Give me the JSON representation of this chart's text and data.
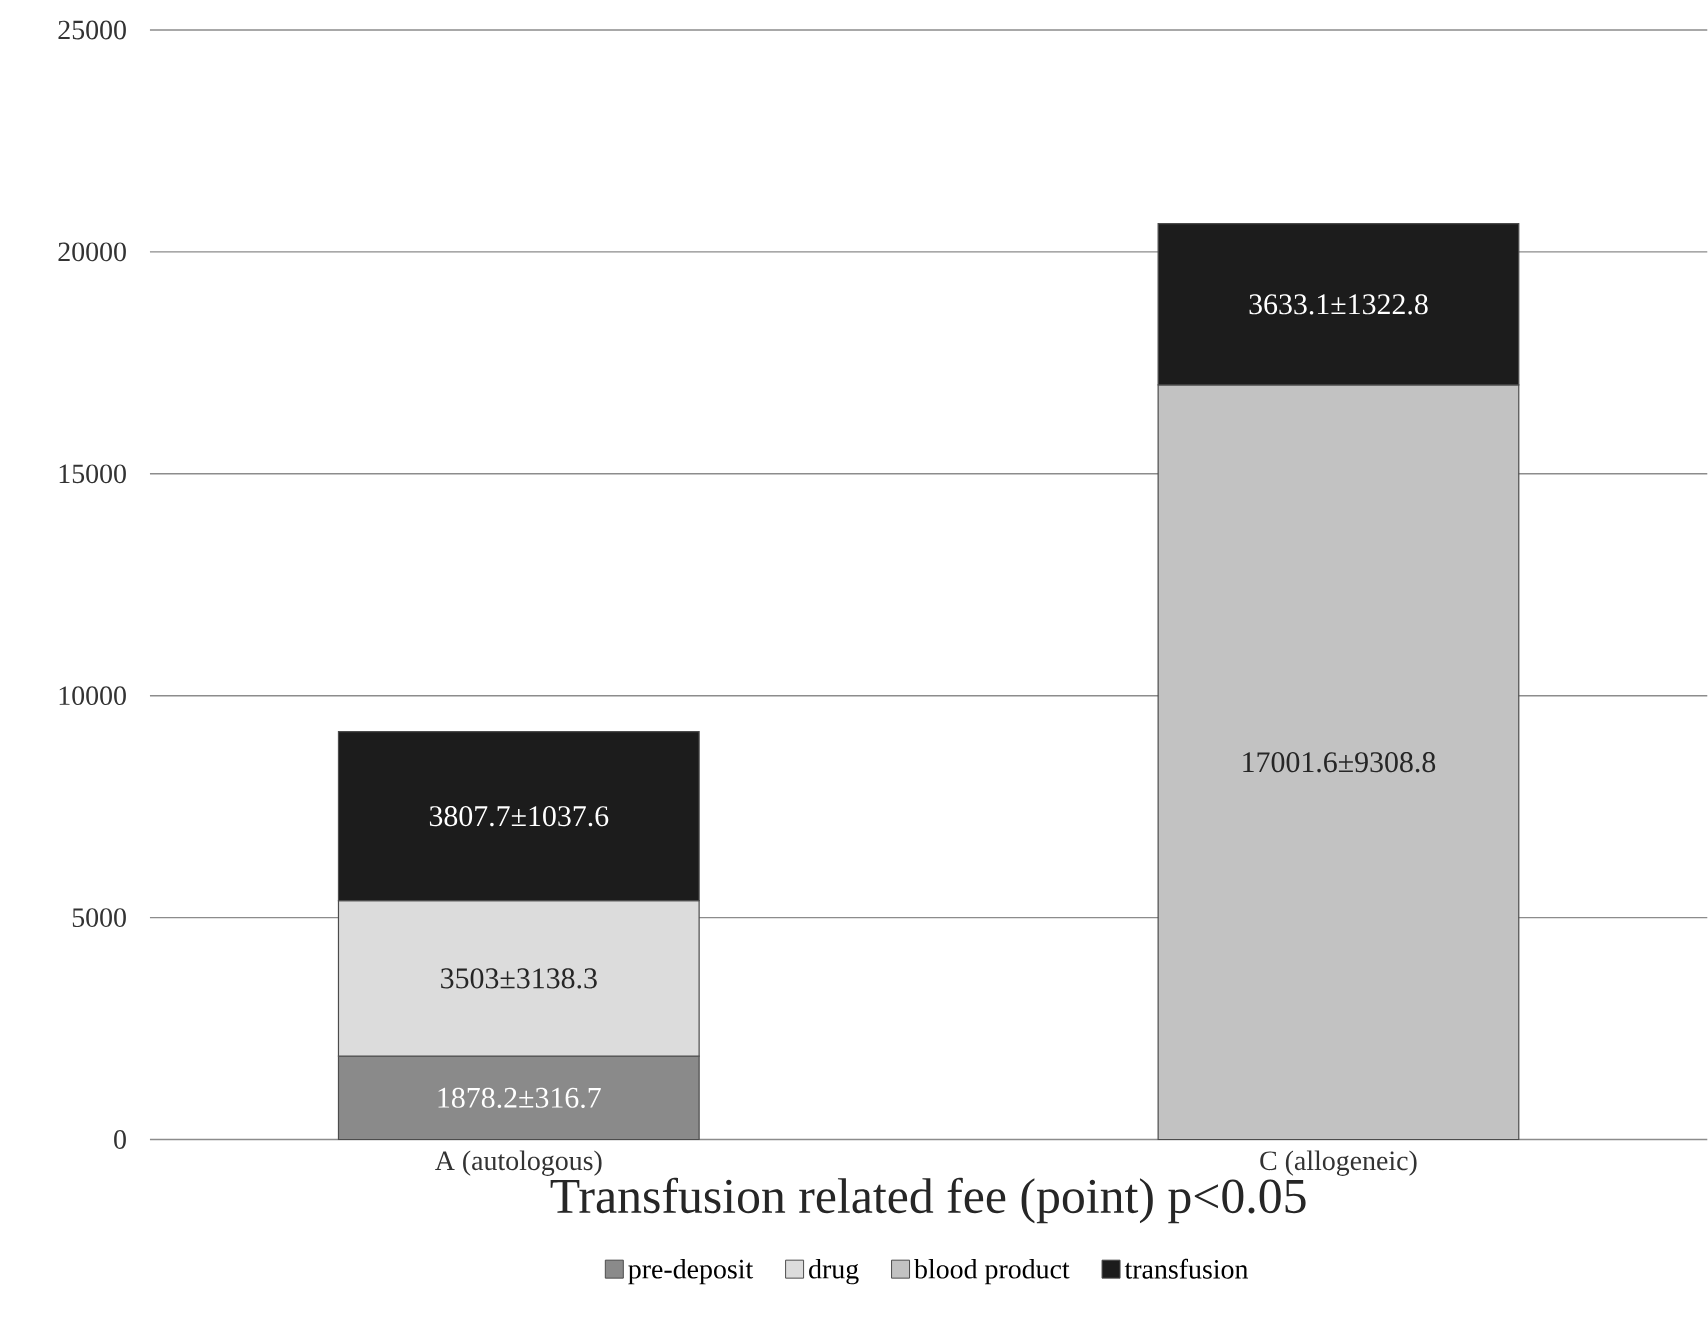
{
  "chart_data": {
    "type": "bar",
    "stacked": true,
    "categories": [
      "A (autologous)",
      "C (allogeneic)"
    ],
    "xlabel": "Transfusion related fee (point) p<0.05",
    "ylim": [
      0,
      25000
    ],
    "yticks": [
      0,
      5000,
      10000,
      15000,
      20000,
      25000
    ],
    "grid": "y",
    "legend": "bottom",
    "series": [
      {
        "name": "pre-deposit",
        "color": "#8a8a8a",
        "values": [
          1878.2,
          null
        ],
        "value_labels": [
          "1878.2±316.7",
          null
        ]
      },
      {
        "name": "drug",
        "color": "#dcdcdc",
        "values": [
          3503,
          null
        ],
        "value_labels": [
          "3503±3138.3",
          null
        ]
      },
      {
        "name": "blood product",
        "color": "#c2c2c2",
        "values": [
          null,
          17001.6
        ],
        "value_labels": [
          null,
          "17001.6±9308.8"
        ]
      },
      {
        "name": "transfusion",
        "color": "#1c1c1c",
        "values": [
          3807.7,
          3633.1
        ],
        "value_labels": [
          "3807.7±1037.6",
          "3633.1±1322.8"
        ]
      }
    ]
  }
}
